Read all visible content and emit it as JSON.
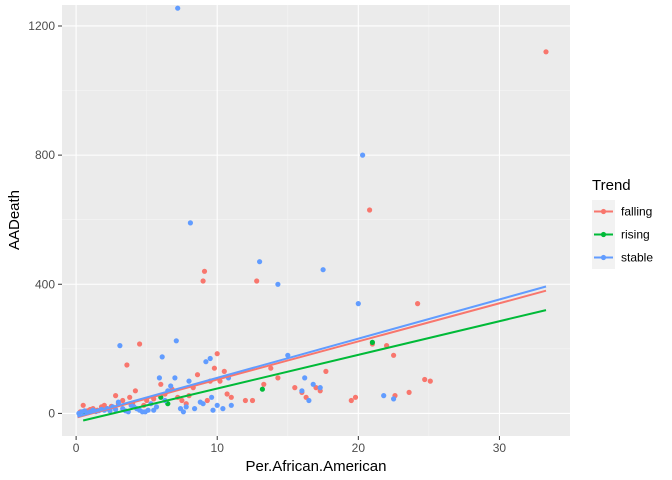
{
  "chart_data": {
    "type": "scatter",
    "title": "",
    "xlabel": "Per.African.American",
    "ylabel": "AADeath",
    "xlim": [
      -1.0,
      35.0
    ],
    "ylim": [
      -70,
      1265
    ],
    "xticks": [
      0,
      10,
      20,
      30
    ],
    "yticks": [
      0,
      400,
      800,
      1200
    ],
    "grid": true,
    "legend": {
      "title": "Trend",
      "position": "right"
    },
    "series": [
      {
        "name": "falling",
        "color": "#F8766D",
        "points": [
          [
            0.3,
            5
          ],
          [
            0.5,
            25
          ],
          [
            0.8,
            8
          ],
          [
            1.0,
            12
          ],
          [
            1.2,
            15
          ],
          [
            1.5,
            10
          ],
          [
            1.8,
            20
          ],
          [
            2.0,
            25
          ],
          [
            2.2,
            15
          ],
          [
            2.5,
            22
          ],
          [
            2.8,
            55
          ],
          [
            3.0,
            30
          ],
          [
            3.3,
            40
          ],
          [
            3.6,
            150
          ],
          [
            3.8,
            50
          ],
          [
            4.0,
            30
          ],
          [
            4.2,
            70
          ],
          [
            4.5,
            215
          ],
          [
            4.8,
            25
          ],
          [
            5.0,
            40
          ],
          [
            5.5,
            45
          ],
          [
            6.0,
            90
          ],
          [
            6.3,
            60
          ],
          [
            6.8,
            75
          ],
          [
            7.2,
            50
          ],
          [
            7.5,
            40
          ],
          [
            7.8,
            30
          ],
          [
            8.0,
            55
          ],
          [
            8.3,
            80
          ],
          [
            8.6,
            120
          ],
          [
            9.0,
            410
          ],
          [
            9.1,
            440
          ],
          [
            9.3,
            40
          ],
          [
            9.5,
            100
          ],
          [
            9.8,
            140
          ],
          [
            10.0,
            185
          ],
          [
            10.2,
            100
          ],
          [
            10.5,
            130
          ],
          [
            10.7,
            60
          ],
          [
            11.0,
            50
          ],
          [
            12.0,
            40
          ],
          [
            12.5,
            40
          ],
          [
            12.8,
            410
          ],
          [
            13.3,
            90
          ],
          [
            13.8,
            140
          ],
          [
            14.3,
            110
          ],
          [
            15.5,
            80
          ],
          [
            16.0,
            65
          ],
          [
            16.3,
            50
          ],
          [
            17.0,
            80
          ],
          [
            17.3,
            70
          ],
          [
            17.7,
            130
          ],
          [
            19.5,
            40
          ],
          [
            19.8,
            50
          ],
          [
            20.8,
            630
          ],
          [
            21.0,
            215
          ],
          [
            22.0,
            210
          ],
          [
            22.5,
            180
          ],
          [
            22.6,
            55
          ],
          [
            23.6,
            65
          ],
          [
            24.2,
            340
          ],
          [
            24.7,
            105
          ],
          [
            25.1,
            100
          ],
          [
            33.3,
            1120
          ]
        ],
        "fit": [
          [
            0.1,
            -12
          ],
          [
            33.3,
            380
          ]
        ]
      },
      {
        "name": "rising",
        "color": "#00BA38",
        "points": [
          [
            0.5,
            5
          ],
          [
            6.0,
            50
          ],
          [
            6.5,
            30
          ],
          [
            13.2,
            75
          ],
          [
            21.0,
            220
          ]
        ],
        "fit": [
          [
            0.5,
            -22
          ],
          [
            33.3,
            320
          ]
        ]
      },
      {
        "name": "stable",
        "color": "#619CFF",
        "points": [
          [
            0.2,
            0
          ],
          [
            0.4,
            5
          ],
          [
            0.6,
            8
          ],
          [
            0.8,
            2
          ],
          [
            1.0,
            5
          ],
          [
            1.2,
            10
          ],
          [
            1.4,
            6
          ],
          [
            1.6,
            8
          ],
          [
            1.8,
            12
          ],
          [
            2.0,
            10
          ],
          [
            2.2,
            15
          ],
          [
            2.4,
            8
          ],
          [
            2.6,
            20
          ],
          [
            2.8,
            12
          ],
          [
            3.0,
            35
          ],
          [
            3.1,
            210
          ],
          [
            3.3,
            15
          ],
          [
            3.5,
            8
          ],
          [
            3.7,
            5
          ],
          [
            3.9,
            25
          ],
          [
            4.1,
            20
          ],
          [
            4.3,
            15
          ],
          [
            4.5,
            10
          ],
          [
            4.7,
            5
          ],
          [
            4.9,
            5
          ],
          [
            5.1,
            10
          ],
          [
            5.3,
            30
          ],
          [
            5.5,
            10
          ],
          [
            5.7,
            20
          ],
          [
            5.9,
            110
          ],
          [
            6.1,
            175
          ],
          [
            6.3,
            40
          ],
          [
            6.5,
            70
          ],
          [
            6.7,
            85
          ],
          [
            7.0,
            110
          ],
          [
            7.1,
            225
          ],
          [
            7.2,
            1255
          ],
          [
            7.4,
            15
          ],
          [
            7.6,
            5
          ],
          [
            7.8,
            20
          ],
          [
            8.0,
            100
          ],
          [
            8.1,
            590
          ],
          [
            8.4,
            15
          ],
          [
            8.8,
            35
          ],
          [
            9.0,
            30
          ],
          [
            9.2,
            160
          ],
          [
            9.5,
            170
          ],
          [
            9.6,
            50
          ],
          [
            9.7,
            10
          ],
          [
            10.0,
            25
          ],
          [
            10.4,
            15
          ],
          [
            10.8,
            110
          ],
          [
            11.0,
            25
          ],
          [
            13.0,
            470
          ],
          [
            14.3,
            400
          ],
          [
            15.0,
            180
          ],
          [
            16.0,
            70
          ],
          [
            16.2,
            110
          ],
          [
            16.5,
            40
          ],
          [
            16.8,
            90
          ],
          [
            17.3,
            80
          ],
          [
            17.5,
            445
          ],
          [
            20.0,
            340
          ],
          [
            20.3,
            800
          ],
          [
            21.8,
            55
          ],
          [
            22.5,
            45
          ]
        ],
        "fit": [
          [
            0.1,
            -10
          ],
          [
            33.3,
            393
          ]
        ]
      }
    ]
  }
}
